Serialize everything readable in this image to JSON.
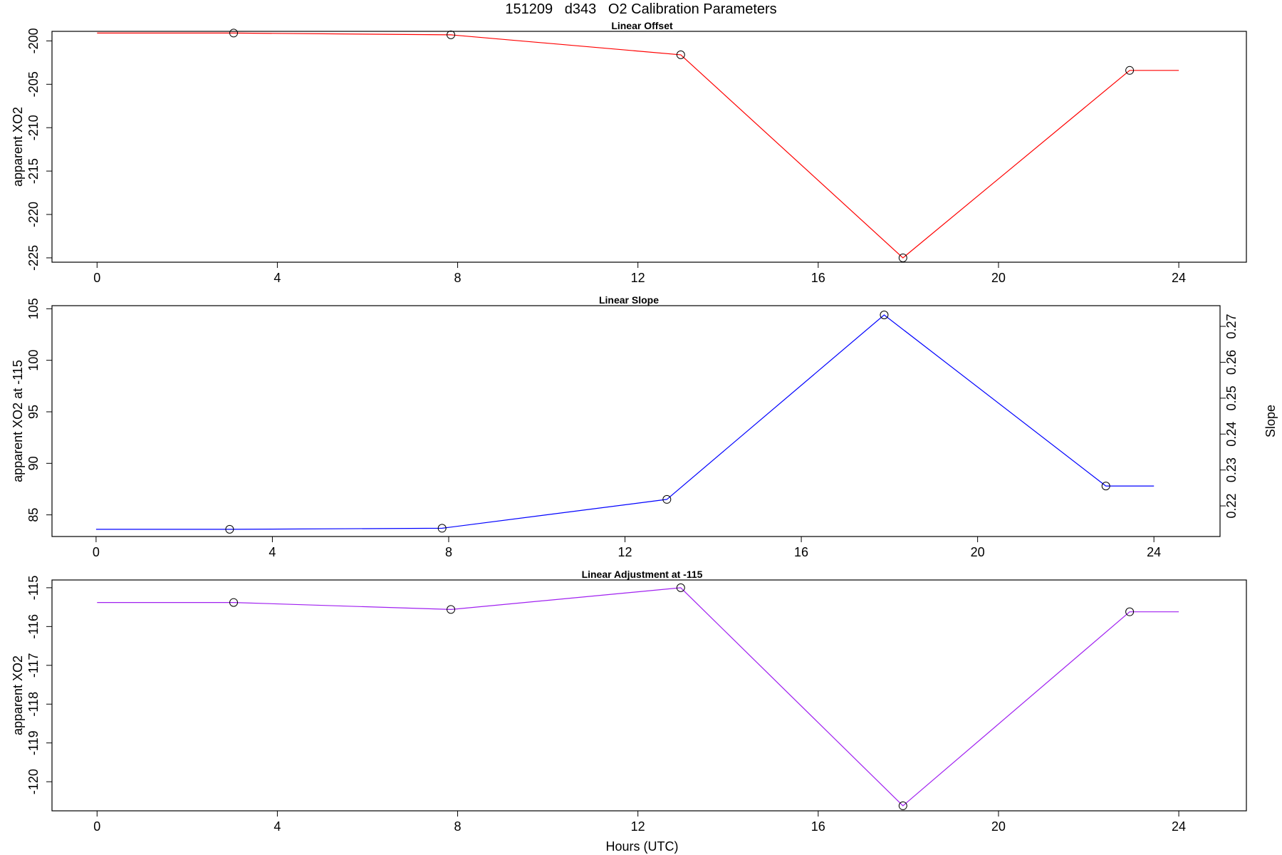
{
  "figure": {
    "title": "151209   d343   O2 Calibration Parameters"
  },
  "chart_data": [
    {
      "type": "line",
      "title": "Linear Offset",
      "xlabel": "",
      "ylabel": "apparent XO2",
      "xlim": [
        -1,
        25.5
      ],
      "ylim": [
        -225.5,
        -198.9
      ],
      "xticks": [
        0,
        4,
        8,
        12,
        16,
        20,
        24
      ],
      "yticks": [
        -225,
        -220,
        -215,
        -210,
        -205,
        -200
      ],
      "line_color": "#ff0000",
      "x": [
        0,
        3.03,
        7.85,
        12.95,
        17.88,
        22.91,
        24
      ],
      "y": [
        -199.1,
        -199.1,
        -199.3,
        -201.6,
        -225.0,
        -203.4,
        -203.4
      ],
      "markers": [
        false,
        true,
        true,
        true,
        true,
        true,
        false
      ]
    },
    {
      "type": "line",
      "title": "Linear Slope",
      "xlabel": "",
      "ylabel": "apparent XO2 at -115",
      "y2label": "Slope",
      "xlim": [
        -1,
        25.5
      ],
      "ylim": [
        82.9,
        105.3
      ],
      "xticks": [
        0,
        4,
        8,
        12,
        16,
        20,
        24
      ],
      "yticks": [
        85,
        90,
        95,
        100,
        105
      ],
      "y2ticks": [
        0.22,
        0.23,
        0.24,
        0.25,
        0.26,
        0.27
      ],
      "y2_transform": {
        "y_at": [
          85,
          105
        ],
        "slope_at": [
          0.2175,
          0.2749
        ]
      },
      "line_color": "#0000ff",
      "x": [
        0,
        3.03,
        7.85,
        12.95,
        17.88,
        22.91,
        24
      ],
      "y": [
        83.6,
        83.6,
        83.7,
        86.5,
        104.4,
        87.8,
        87.8
      ],
      "markers": [
        false,
        true,
        true,
        true,
        true,
        true,
        false
      ]
    },
    {
      "type": "line",
      "title": "Linear Adjustment at -115",
      "xlabel": "Hours (UTC)",
      "ylabel": "apparent XO2",
      "xlim": [
        -1,
        25.5
      ],
      "ylim": [
        -120.75,
        -114.8
      ],
      "xticks": [
        0,
        4,
        8,
        12,
        16,
        20,
        24
      ],
      "yticks": [
        -120,
        -119,
        -118,
        -117,
        -116,
        -115
      ],
      "line_color": "#a020f0",
      "x": [
        0,
        3.03,
        7.85,
        12.95,
        17.88,
        22.91,
        24
      ],
      "y": [
        -115.38,
        -115.38,
        -115.56,
        -115.0,
        -120.62,
        -115.62,
        -115.62
      ],
      "markers": [
        false,
        true,
        true,
        true,
        true,
        true,
        false
      ]
    }
  ]
}
